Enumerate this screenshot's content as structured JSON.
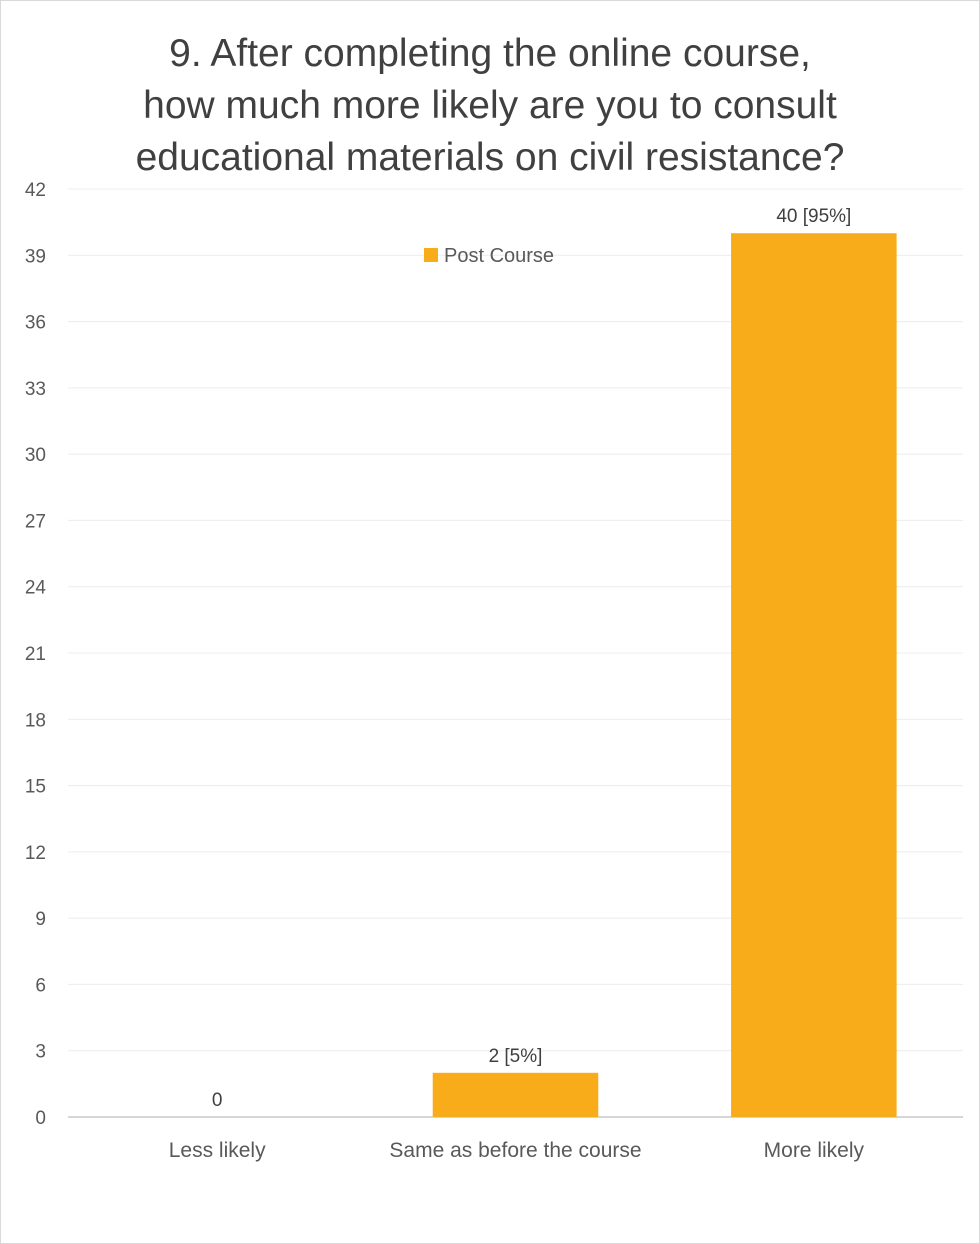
{
  "chart_data": {
    "type": "bar",
    "title_lines": [
      "9. After completing the online course,",
      "how much more likely are you to consult",
      "educational materials on civil resistance?"
    ],
    "categories": [
      "Less likely",
      "Same as before the course",
      "More likely"
    ],
    "series": [
      {
        "name": "Post Course",
        "values": [
          0,
          2,
          40
        ],
        "data_labels": [
          "0",
          "2 [5%]",
          "40 [95%]"
        ],
        "color": "#F9AC1A"
      }
    ],
    "xlabel": "",
    "ylabel": "",
    "ylim": [
      0,
      42
    ],
    "yticks": [
      0,
      3,
      6,
      9,
      12,
      15,
      18,
      21,
      24,
      27,
      30,
      33,
      36,
      39,
      42
    ],
    "grid": true,
    "legend_position": "top-center",
    "colors": {
      "gridline": "#ececec",
      "axis": "#c8c8c8",
      "bar": "#F9AC1A"
    }
  }
}
